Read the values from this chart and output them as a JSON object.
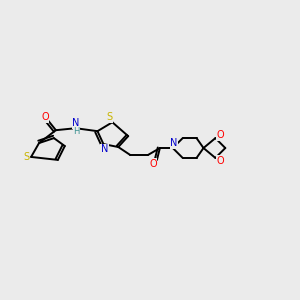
{
  "bg_color": "#ebebeb",
  "bond_color": "#000000",
  "atom_colors": {
    "S": "#c8b400",
    "N": "#0000cd",
    "O": "#ff0000",
    "H": "#3a9090",
    "C": "#000000"
  },
  "figsize": [
    3.0,
    3.0
  ],
  "dpi": 100
}
